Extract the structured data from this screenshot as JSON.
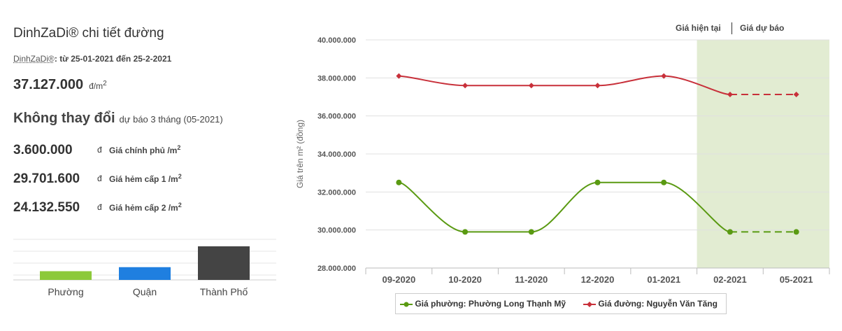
{
  "summary": {
    "title": "DinhZaDi® chi tiết đường",
    "range_brand": "DinhZaDi®",
    "range_text": ": từ 25-01-2021 đến 25-2-2021",
    "price": "37.127.000",
    "price_unit": "đ/m",
    "change": "Không thay đổi",
    "change_sub": "dự báo 3 tháng (05-2021)",
    "rows": [
      {
        "value": "3.600.000",
        "currency": "đ",
        "label": "Giá chính phủ /m"
      },
      {
        "value": "29.701.600",
        "currency": "đ",
        "label": "Giá hẻm cấp 1 /m"
      },
      {
        "value": "24.132.550",
        "currency": "đ",
        "label": "Giá hẻm cấp 2 /m"
      }
    ]
  },
  "mini_bars": {
    "categories": [
      "Phường",
      "Quận",
      "Thành Phố"
    ],
    "levels": [
      0.26,
      0.38,
      1.0
    ],
    "colors": [
      "#8cc93a",
      "#1f7fe0",
      "#444444"
    ]
  },
  "toggle": {
    "current": "Giá hiện tại",
    "forecast": "Giá dự báo"
  },
  "colors": {
    "ward": "#5a9a12",
    "street": "#c8303a",
    "forecast_band": "#e2ecd2",
    "grid": "#e0e0e0"
  },
  "chart_data": {
    "type": "line",
    "categories": [
      "09-2020",
      "10-2020",
      "11-2020",
      "12-2020",
      "01-2021",
      "02-2021",
      "05-2021"
    ],
    "ylabel": "Giá trên m² (đồng)",
    "ylim": [
      28000000,
      40000000
    ],
    "yticks": [
      28000000,
      30000000,
      32000000,
      34000000,
      36000000,
      38000000,
      40000000
    ],
    "ytick_labels": [
      "28.000.000",
      "30.000.000",
      "32.000.000",
      "34.000.000",
      "36.000.000",
      "38.000.000",
      "40.000.000"
    ],
    "forecast_from_index": 5,
    "series": [
      {
        "name": "Giá phường: Phường Long Thạnh Mỹ",
        "values": [
          32500000,
          29900000,
          29900000,
          32500000,
          32500000,
          29900000,
          29900000
        ],
        "color": "#5a9a12",
        "marker": "circle"
      },
      {
        "name": "Giá đường: Nguyễn Văn Tăng",
        "values": [
          38100000,
          37600000,
          37600000,
          37600000,
          38100000,
          37127000,
          37127000
        ],
        "color": "#c8303a",
        "marker": "diamond"
      }
    ],
    "legend": "bottom"
  }
}
